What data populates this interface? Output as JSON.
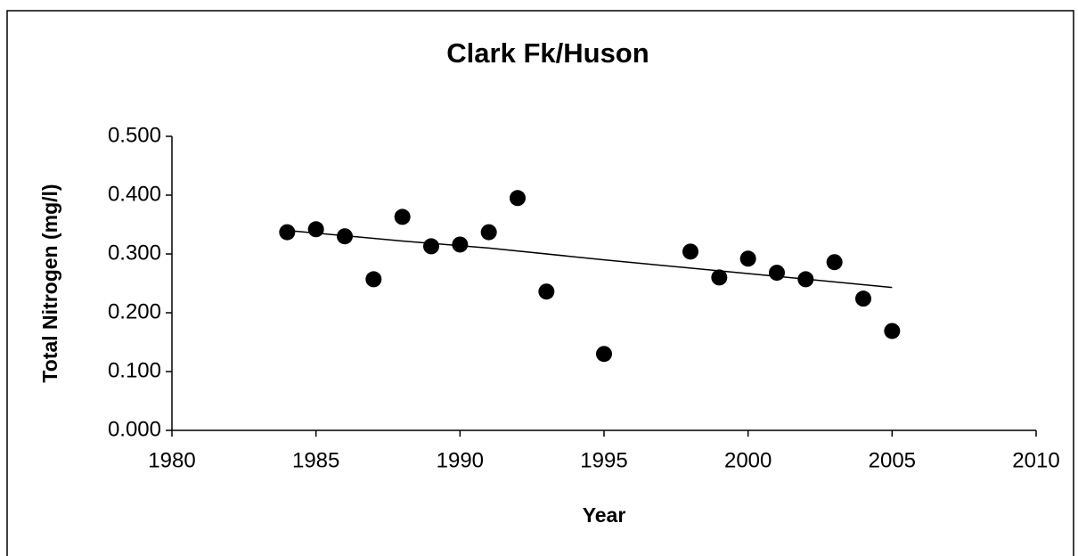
{
  "chart_data": {
    "type": "scatter",
    "title": "Clark Fk/Huson",
    "xlabel": "Year",
    "ylabel": "Total Nitrogen (mg/l)",
    "xlim": [
      1980,
      2010
    ],
    "xticks": [
      1980,
      1985,
      1990,
      1995,
      2000,
      2005,
      2010
    ],
    "ylim": [
      0,
      0.5
    ],
    "yticks": [
      {
        "value": 0,
        "label": "0.000"
      },
      {
        "value": 0.1,
        "label": "0.100"
      },
      {
        "value": 0.2,
        "label": "0.200"
      },
      {
        "value": 0.3,
        "label": "0.300"
      },
      {
        "value": 0.4,
        "label": "0.400"
      },
      {
        "value": 0.5,
        "label": "0.500"
      }
    ],
    "grid": false,
    "series": [
      {
        "type": "scatter",
        "color": "#000000",
        "x": [
          1984,
          1985,
          1986,
          1987,
          1988,
          1989,
          1990,
          1991,
          1992,
          1993,
          1995,
          1998,
          1999,
          2000,
          2001,
          2002,
          2003,
          2004,
          2005
        ],
        "values": [
          0.337,
          0.342,
          0.33,
          0.257,
          0.363,
          0.313,
          0.316,
          0.337,
          0.395,
          0.236,
          0.13,
          0.304,
          0.26,
          0.292,
          0.268,
          0.257,
          0.286,
          0.224,
          0.169
        ]
      },
      {
        "type": "line",
        "color": "#000000",
        "x": [
          1984,
          1988,
          1991,
          1995,
          1998,
          2001,
          2005
        ],
        "values": [
          0.34,
          0.322,
          0.31,
          0.29,
          0.276,
          0.262,
          0.243
        ]
      }
    ]
  }
}
